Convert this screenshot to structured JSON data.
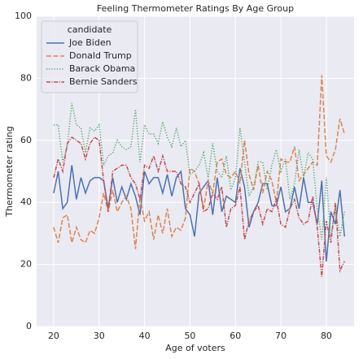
{
  "chart_data": {
    "type": "line",
    "title": "Feeling Thermometer Ratings By Age Group",
    "x_label": "Age of voters",
    "y_label": "Thermometer rating",
    "legend_title": "candidate",
    "legend_position": "upper left",
    "grid": true,
    "x": [
      20,
      21,
      22,
      23,
      24,
      25,
      26,
      27,
      28,
      29,
      30,
      31,
      32,
      33,
      34,
      35,
      36,
      37,
      38,
      39,
      40,
      41,
      42,
      43,
      44,
      45,
      46,
      47,
      48,
      49,
      50,
      51,
      52,
      53,
      54,
      55,
      56,
      57,
      58,
      59,
      60,
      61,
      62,
      63,
      64,
      65,
      66,
      67,
      68,
      69,
      70,
      71,
      72,
      73,
      74,
      75,
      76,
      77,
      78,
      79,
      80,
      81,
      82,
      83,
      84
    ],
    "xlim": [
      16.25,
      86.1
    ],
    "xticks": [
      20,
      30,
      40,
      50,
      60,
      70,
      80
    ],
    "ylim": [
      0,
      100
    ],
    "yticks": [
      0,
      20,
      40,
      60,
      80,
      100
    ],
    "series": [
      {
        "name": "Joe Biden",
        "color": "#4c72b0",
        "dash": "none",
        "values": [
          43,
          50,
          38,
          40,
          52,
          41,
          48,
          43,
          47,
          48,
          48,
          47,
          38,
          48,
          40,
          45,
          41,
          46,
          42,
          36,
          50,
          46,
          48,
          48,
          43,
          49,
          42,
          48,
          50,
          38,
          36,
          29,
          43,
          45,
          47,
          36,
          48,
          37,
          42,
          41,
          40,
          51,
          45,
          32,
          37,
          40,
          46,
          46,
          39,
          39,
          45,
          37,
          38,
          45,
          38,
          48,
          40,
          40,
          33,
          47,
          21,
          37,
          33,
          44,
          29
        ]
      },
      {
        "name": "Donald Trump",
        "color": "#dd8452",
        "dash": "6,2.5",
        "values": [
          32,
          27,
          35,
          36,
          27,
          32,
          28,
          27,
          31,
          30,
          35,
          43,
          37,
          44,
          37,
          40,
          42,
          38,
          25,
          42,
          34,
          37,
          28,
          36,
          30,
          38,
          29,
          32,
          31,
          35,
          51,
          50,
          46,
          38,
          47,
          43,
          53,
          54,
          49,
          48,
          50,
          46,
          60,
          49,
          44,
          52,
          43,
          50,
          47,
          40,
          54,
          53,
          53,
          58,
          47,
          49,
          51,
          53,
          52,
          81,
          55,
          53,
          57,
          67,
          62
        ]
      },
      {
        "name": "Barack Obama",
        "color": "#55a868",
        "dash": "1.2,2",
        "values": [
          65,
          65,
          53,
          58,
          72,
          65,
          64,
          56,
          64,
          63,
          65,
          52,
          55,
          56,
          60,
          58,
          57,
          58,
          70,
          53,
          65,
          62,
          62,
          59,
          66,
          61,
          58,
          64,
          58,
          60,
          49,
          50,
          52,
          56,
          48,
          59,
          50,
          48,
          55,
          44,
          48,
          64,
          53,
          42,
          45,
          53,
          53,
          44,
          52,
          57,
          50,
          54,
          41,
          46,
          57,
          48,
          56,
          54,
          38,
          28,
          48,
          29,
          38,
          29,
          37
        ]
      },
      {
        "name": "Bernie Sanders",
        "color": "#c44e52",
        "dash": "5,1.5,1.2,1.5",
        "values": [
          48,
          54,
          50,
          59,
          61,
          60,
          59,
          54,
          59,
          61,
          60,
          47,
          37,
          50,
          51,
          52,
          52,
          48,
          46,
          41,
          52,
          51,
          55,
          50,
          55,
          50,
          50,
          50,
          46,
          45,
          40,
          43,
          46,
          37,
          38,
          43,
          41,
          45,
          32,
          38,
          39,
          45,
          28,
          34,
          37,
          39,
          33,
          38,
          37,
          41,
          33,
          32,
          38,
          41,
          35,
          33,
          34,
          42,
          32,
          16,
          34,
          27,
          40,
          18,
          21
        ]
      }
    ]
  }
}
